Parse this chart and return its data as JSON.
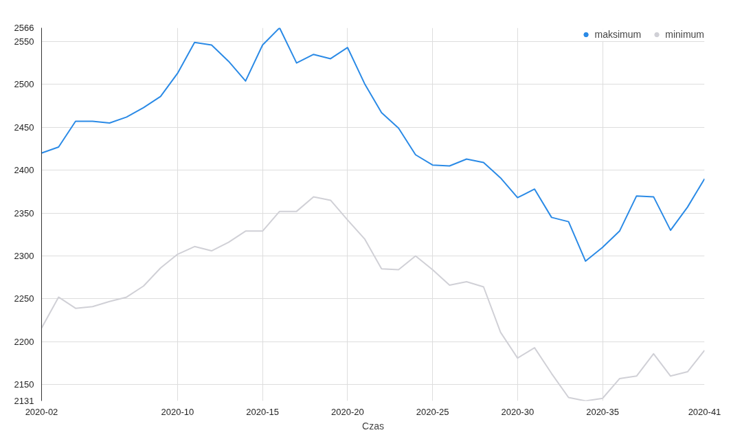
{
  "chart_data": {
    "type": "line",
    "xlabel": "Czas",
    "categories": [
      "2020-02",
      null,
      null,
      null,
      null,
      null,
      null,
      null,
      "2020-10",
      null,
      null,
      null,
      null,
      "2020-15",
      null,
      null,
      null,
      null,
      "2020-20",
      null,
      null,
      null,
      null,
      "2020-25",
      null,
      null,
      null,
      null,
      "2020-30",
      null,
      null,
      null,
      null,
      "2020-35",
      null,
      null,
      null,
      null,
      null,
      "2020-41"
    ],
    "series": [
      {
        "name": "maksimum",
        "color": "#2a8ae6",
        "values": [
          2420,
          2427,
          2457,
          2457,
          2455,
          2462,
          2473,
          2486,
          2513,
          2549,
          2546,
          2527,
          2504,
          2546,
          2566,
          2525,
          2535,
          2530,
          2543,
          2501,
          2467,
          2449,
          2418,
          2406,
          2405,
          2413,
          2409,
          2391,
          2368,
          2378,
          2345,
          2340,
          2294,
          2310,
          2329,
          2370,
          2369,
          2330,
          2357,
          2390
        ]
      },
      {
        "name": "minimum",
        "color": "#d0d0d6",
        "values": [
          2216,
          2252,
          2239,
          2241,
          2247,
          2252,
          2265,
          2286,
          2302,
          2311,
          2306,
          2316,
          2329,
          2329,
          2352,
          2352,
          2369,
          2365,
          2342,
          2320,
          2285,
          2284,
          2300,
          2284,
          2266,
          2270,
          2264,
          2211,
          2181,
          2193,
          2163,
          2135,
          2131,
          2134,
          2157,
          2160,
          2186,
          2160,
          2165,
          2190
        ]
      }
    ],
    "ylim": [
      2131,
      2566
    ],
    "yticks": [
      2131,
      2150,
      2200,
      2250,
      2300,
      2350,
      2400,
      2450,
      2500,
      2550,
      2566
    ],
    "grid": true,
    "legend": "top right",
    "marker": "none",
    "line_style": "solid"
  }
}
